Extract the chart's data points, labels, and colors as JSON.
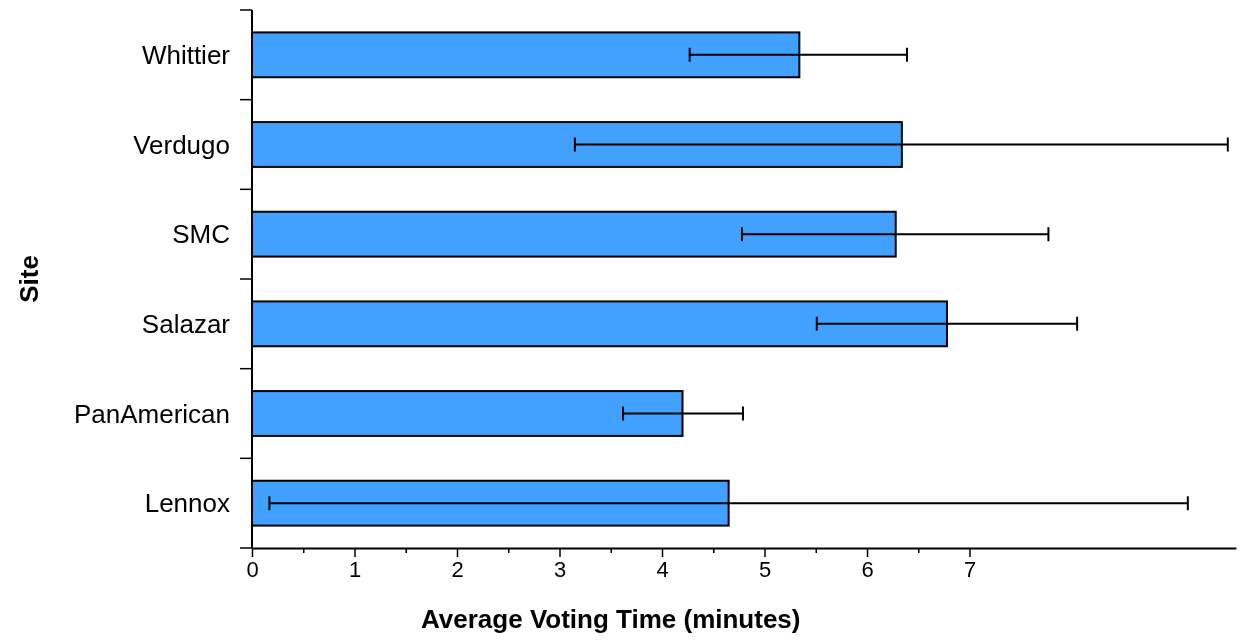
{
  "chart_data": {
    "type": "bar",
    "orientation": "horizontal",
    "xlabel": "Average Voting Time (minutes)",
    "ylabel": "Site",
    "categories": [
      "Whittier",
      "Verdugo",
      "SMC",
      "Salazar",
      "PanAmerican",
      "Lennox"
    ],
    "values": [
      5.34,
      6.34,
      6.28,
      6.78,
      4.2,
      4.65
    ],
    "errors": [
      [
        4.27,
        6.39
      ],
      [
        3.15,
        9.52
      ],
      [
        4.78,
        7.77
      ],
      [
        5.51,
        8.05
      ],
      [
        3.62,
        4.79
      ],
      [
        0.17,
        9.13
      ]
    ],
    "color": "#42a0ff",
    "xlim": [
      0,
      9.6
    ],
    "xticks": [
      0,
      {
        "value": 0.5,
        "label": null
      },
      1,
      {
        "value": 1.5,
        "label": null
      },
      2,
      {
        "value": 2.5,
        "label": null
      },
      3,
      {
        "value": 3.5,
        "label": null
      },
      4,
      {
        "value": 4.5,
        "label": null
      },
      5,
      {
        "value": 5.5,
        "label": null
      },
      6,
      {
        "value": 6.5,
        "label": null
      },
      7
    ],
    "grid": false
  }
}
